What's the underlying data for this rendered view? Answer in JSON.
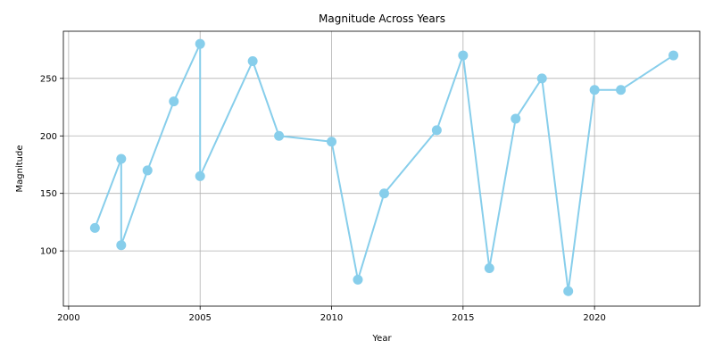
{
  "chart_data": {
    "type": "line",
    "title": "Magnitude Across Years",
    "xlabel": "Year",
    "ylabel": "Magnitude",
    "xlim": [
      1999.8,
      2024.0
    ],
    "ylim": [
      52,
      291
    ],
    "xticks": [
      2000,
      2005,
      2010,
      2015,
      2020
    ],
    "yticks": [
      100,
      150,
      200,
      250
    ],
    "grid": true,
    "color": "#87ceeb",
    "points": [
      {
        "x": 2001,
        "y": 120
      },
      {
        "x": 2002,
        "y": 180
      },
      {
        "x": 2002,
        "y": 105
      },
      {
        "x": 2003,
        "y": 170
      },
      {
        "x": 2004,
        "y": 230
      },
      {
        "x": 2005,
        "y": 280
      },
      {
        "x": 2005,
        "y": 165
      },
      {
        "x": 2007,
        "y": 265
      },
      {
        "x": 2008,
        "y": 200
      },
      {
        "x": 2010,
        "y": 195
      },
      {
        "x": 2011,
        "y": 75
      },
      {
        "x": 2012,
        "y": 150
      },
      {
        "x": 2014,
        "y": 205
      },
      {
        "x": 2015,
        "y": 270
      },
      {
        "x": 2016,
        "y": 85
      },
      {
        "x": 2017,
        "y": 215
      },
      {
        "x": 2018,
        "y": 250
      },
      {
        "x": 2019,
        "y": 65
      },
      {
        "x": 2020,
        "y": 240
      },
      {
        "x": 2021,
        "y": 240
      },
      {
        "x": 2023,
        "y": 270
      }
    ]
  }
}
